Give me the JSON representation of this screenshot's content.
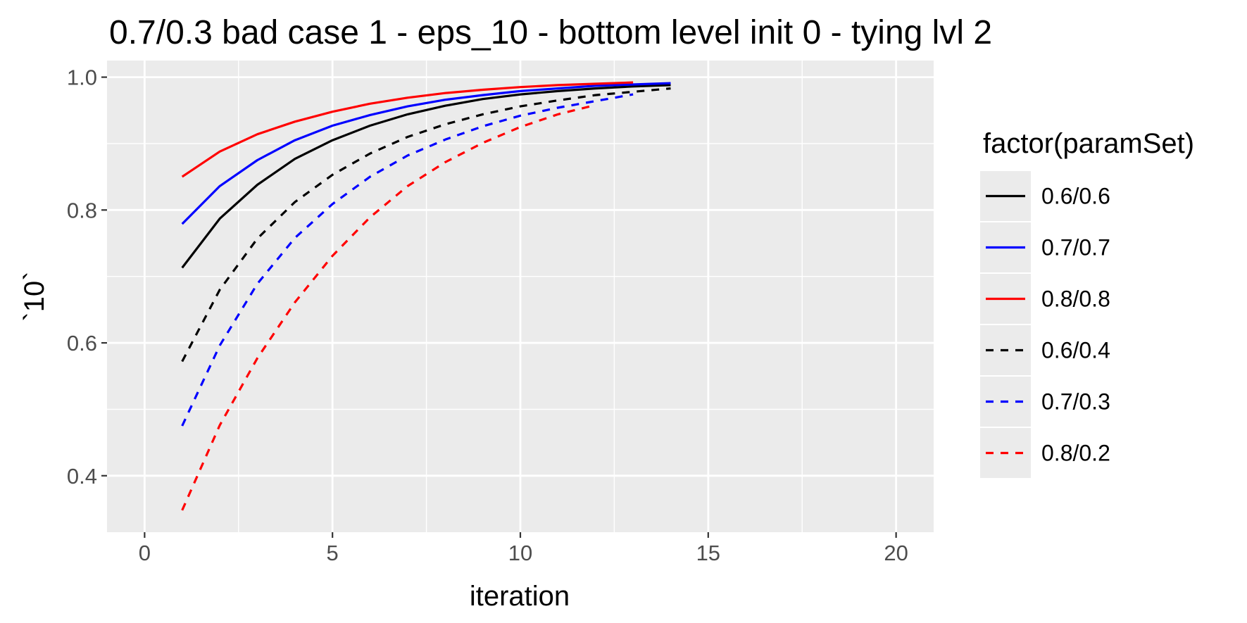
{
  "chart_data": {
    "type": "line",
    "title": "0.7/0.3 bad case 1 - eps_10 - bottom level init 0 - tying lvl 2",
    "xlabel": "iteration",
    "ylabel": "`10`",
    "xlim": [
      -1,
      21
    ],
    "ylim": [
      0.315,
      1.025
    ],
    "x_ticks": [
      0,
      5,
      10,
      15,
      20
    ],
    "x_tick_labels": [
      "0",
      "5",
      "10",
      "15",
      "20"
    ],
    "y_ticks": [
      0.4,
      0.6,
      0.8,
      1.0
    ],
    "y_tick_labels": [
      "0.4",
      "0.6",
      "0.8",
      "1.0"
    ],
    "x_minor_ticks": [
      2.5,
      7.5,
      12.5,
      17.5
    ],
    "y_minor_ticks": [
      0.5,
      0.7,
      0.9
    ],
    "grid": true,
    "panel_background": "#ebebeb",
    "legend": {
      "title": "factor(paramSet)",
      "position": "right"
    },
    "series": [
      {
        "name": "0.6/0.6",
        "color": "#000000",
        "linetype": "solid",
        "x": [
          1,
          2,
          3,
          4,
          5,
          6,
          7,
          8,
          9,
          10,
          11,
          12,
          13,
          14
        ],
        "y": [
          0.713,
          0.787,
          0.838,
          0.877,
          0.905,
          0.927,
          0.944,
          0.957,
          0.967,
          0.974,
          0.979,
          0.983,
          0.986,
          0.988
        ]
      },
      {
        "name": "0.7/0.7",
        "color": "#0000ff",
        "linetype": "solid",
        "x": [
          1,
          2,
          3,
          4,
          5,
          6,
          7,
          8,
          9,
          10,
          11,
          12,
          13,
          14
        ],
        "y": [
          0.779,
          0.836,
          0.875,
          0.905,
          0.927,
          0.943,
          0.956,
          0.966,
          0.973,
          0.979,
          0.983,
          0.987,
          0.989,
          0.991
        ]
      },
      {
        "name": "0.8/0.8",
        "color": "#ff0000",
        "linetype": "solid",
        "x": [
          1,
          2,
          3,
          4,
          5,
          6,
          7,
          8,
          9,
          10,
          11,
          12,
          13
        ],
        "y": [
          0.85,
          0.888,
          0.914,
          0.933,
          0.948,
          0.96,
          0.969,
          0.976,
          0.981,
          0.985,
          0.988,
          0.99,
          0.992
        ]
      },
      {
        "name": "0.6/0.4",
        "color": "#000000",
        "linetype": "dashed",
        "x": [
          1,
          2,
          3,
          4,
          5,
          6,
          7,
          8,
          9,
          10,
          11,
          12,
          13,
          14
        ],
        "y": [
          0.572,
          0.68,
          0.757,
          0.812,
          0.853,
          0.885,
          0.91,
          0.929,
          0.944,
          0.956,
          0.965,
          0.973,
          0.978,
          0.983
        ]
      },
      {
        "name": "0.7/0.3",
        "color": "#0000ff",
        "linetype": "dashed",
        "x": [
          1,
          2,
          3,
          4,
          5,
          6,
          7,
          8,
          9,
          10,
          11,
          12,
          13
        ],
        "y": [
          0.475,
          0.596,
          0.689,
          0.758,
          0.809,
          0.85,
          0.882,
          0.906,
          0.926,
          0.942,
          0.954,
          0.964,
          0.974
        ]
      },
      {
        "name": "0.8/0.2",
        "color": "#ff0000",
        "linetype": "dashed",
        "x": [
          1,
          2,
          3,
          4,
          5,
          6,
          7,
          8,
          9,
          10,
          11,
          12
        ],
        "y": [
          0.348,
          0.476,
          0.577,
          0.661,
          0.731,
          0.789,
          0.836,
          0.872,
          0.901,
          0.925,
          0.944,
          0.958
        ]
      }
    ]
  }
}
